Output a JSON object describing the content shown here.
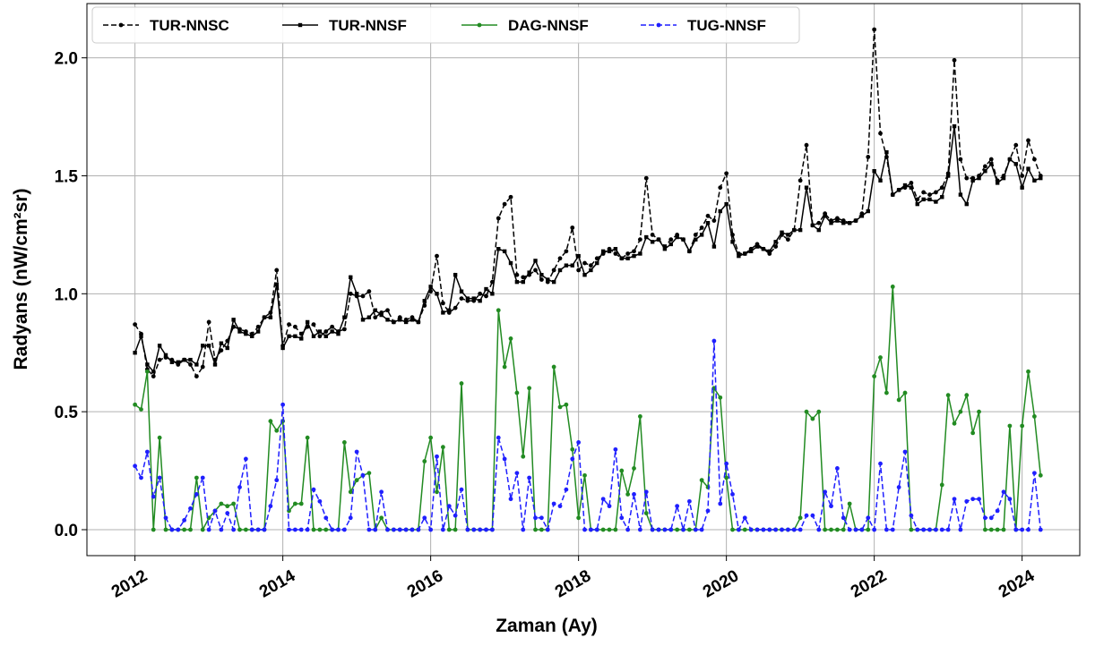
{
  "chart_data": {
    "type": "line",
    "x_label": "Zaman (Ay)",
    "y_label": "Radyans (nW/cm²sr)",
    "x": [
      "2012-01",
      "2012-02",
      "2012-03",
      "2012-04",
      "2012-05",
      "2012-06",
      "2012-07",
      "2012-08",
      "2012-09",
      "2012-10",
      "2012-11",
      "2012-12",
      "2013-01",
      "2013-02",
      "2013-03",
      "2013-04",
      "2013-05",
      "2013-06",
      "2013-07",
      "2013-08",
      "2013-09",
      "2013-10",
      "2013-11",
      "2013-12",
      "2014-01",
      "2014-02",
      "2014-03",
      "2014-04",
      "2014-05",
      "2014-06",
      "2014-07",
      "2014-08",
      "2014-09",
      "2014-10",
      "2014-11",
      "2014-12",
      "2015-01",
      "2015-02",
      "2015-03",
      "2015-04",
      "2015-05",
      "2015-06",
      "2015-07",
      "2015-08",
      "2015-09",
      "2015-10",
      "2015-11",
      "2015-12",
      "2016-01",
      "2016-02",
      "2016-03",
      "2016-04",
      "2016-05",
      "2016-06",
      "2016-07",
      "2016-08",
      "2016-09",
      "2016-10",
      "2016-11",
      "2016-12",
      "2017-01",
      "2017-02",
      "2017-03",
      "2017-04",
      "2017-05",
      "2017-06",
      "2017-07",
      "2017-08",
      "2017-09",
      "2017-10",
      "2017-11",
      "2017-12",
      "2018-01",
      "2018-02",
      "2018-03",
      "2018-04",
      "2018-05",
      "2018-06",
      "2018-07",
      "2018-08",
      "2018-09",
      "2018-10",
      "2018-11",
      "2018-12",
      "2019-01",
      "2019-02",
      "2019-03",
      "2019-04",
      "2019-05",
      "2019-06",
      "2019-07",
      "2019-08",
      "2019-09",
      "2019-10",
      "2019-11",
      "2019-12",
      "2020-01",
      "2020-02",
      "2020-03",
      "2020-04",
      "2020-05",
      "2020-06",
      "2020-07",
      "2020-08",
      "2020-09",
      "2020-10",
      "2020-11",
      "2020-12",
      "2021-01",
      "2021-02",
      "2021-03",
      "2021-04",
      "2021-05",
      "2021-06",
      "2021-07",
      "2021-08",
      "2021-09",
      "2021-10",
      "2021-11",
      "2021-12",
      "2022-01",
      "2022-02",
      "2022-03",
      "2022-04",
      "2022-05",
      "2022-06",
      "2022-07",
      "2022-08",
      "2022-09",
      "2022-10",
      "2022-11",
      "2022-12",
      "2023-01",
      "2023-02",
      "2023-03",
      "2023-04",
      "2023-05",
      "2023-06",
      "2023-07",
      "2023-08",
      "2023-09",
      "2023-10",
      "2023-11",
      "2023-12",
      "2024-01",
      "2024-02",
      "2024-03",
      "2024-04"
    ],
    "series": [
      {
        "name": "TUR-NNSC",
        "color": "#000000",
        "linestyle": "dashed",
        "marker": "circle",
        "values": [
          0.87,
          0.83,
          0.68,
          0.65,
          0.72,
          0.73,
          0.72,
          0.7,
          0.72,
          0.7,
          0.65,
          0.69,
          0.88,
          0.72,
          0.76,
          0.8,
          0.86,
          0.85,
          0.84,
          0.83,
          0.86,
          0.9,
          0.92,
          1.1,
          0.78,
          0.87,
          0.86,
          0.83,
          0.86,
          0.87,
          0.82,
          0.84,
          0.86,
          0.84,
          0.85,
          1.0,
          0.99,
          0.99,
          1.01,
          0.9,
          0.92,
          0.93,
          0.88,
          0.9,
          0.89,
          0.9,
          0.88,
          0.95,
          1.01,
          1.16,
          0.96,
          0.92,
          0.94,
          0.98,
          0.97,
          0.97,
          1.0,
          0.99,
          1.05,
          1.32,
          1.38,
          1.41,
          1.08,
          1.07,
          1.08,
          1.1,
          1.06,
          1.05,
          1.1,
          1.15,
          1.18,
          1.28,
          1.1,
          1.13,
          1.12,
          1.15,
          1.17,
          1.19,
          1.17,
          1.15,
          1.17,
          1.18,
          1.23,
          1.49,
          1.25,
          1.23,
          1.2,
          1.23,
          1.25,
          1.23,
          1.18,
          1.25,
          1.28,
          1.33,
          1.31,
          1.45,
          1.51,
          1.25,
          1.17,
          1.17,
          1.19,
          1.21,
          1.19,
          1.17,
          1.2,
          1.25,
          1.23,
          1.27,
          1.48,
          1.63,
          1.29,
          1.3,
          1.34,
          1.31,
          1.32,
          1.31,
          1.3,
          1.31,
          1.34,
          1.58,
          2.12,
          1.68,
          1.58,
          1.42,
          1.44,
          1.45,
          1.47,
          1.4,
          1.43,
          1.42,
          1.43,
          1.45,
          1.51,
          1.99,
          1.57,
          1.49,
          1.49,
          1.5,
          1.54,
          1.57,
          1.48,
          1.5,
          1.57,
          1.63,
          1.5,
          1.65,
          1.57,
          1.5
        ]
      },
      {
        "name": "TUR-NNSF",
        "color": "#000000",
        "linestyle": "solid",
        "marker": "square",
        "values": [
          0.75,
          0.82,
          0.7,
          0.67,
          0.78,
          0.74,
          0.71,
          0.71,
          0.72,
          0.72,
          0.7,
          0.78,
          0.78,
          0.7,
          0.79,
          0.77,
          0.89,
          0.84,
          0.83,
          0.82,
          0.84,
          0.9,
          0.9,
          1.04,
          0.77,
          0.82,
          0.82,
          0.81,
          0.88,
          0.82,
          0.84,
          0.82,
          0.84,
          0.83,
          0.9,
          1.07,
          1.0,
          0.89,
          0.9,
          0.93,
          0.91,
          0.89,
          0.88,
          0.89,
          0.88,
          0.89,
          0.88,
          0.97,
          1.03,
          1.0,
          0.92,
          0.93,
          1.08,
          1.01,
          0.98,
          0.98,
          0.97,
          1.02,
          1.0,
          1.19,
          1.18,
          1.13,
          1.05,
          1.05,
          1.09,
          1.14,
          1.08,
          1.06,
          1.05,
          1.1,
          1.12,
          1.12,
          1.16,
          1.08,
          1.1,
          1.13,
          1.18,
          1.18,
          1.19,
          1.15,
          1.15,
          1.16,
          1.17,
          1.24,
          1.22,
          1.23,
          1.19,
          1.21,
          1.24,
          1.23,
          1.18,
          1.23,
          1.25,
          1.3,
          1.2,
          1.35,
          1.38,
          1.22,
          1.16,
          1.17,
          1.18,
          1.2,
          1.19,
          1.18,
          1.22,
          1.26,
          1.25,
          1.27,
          1.27,
          1.45,
          1.29,
          1.27,
          1.33,
          1.3,
          1.31,
          1.3,
          1.3,
          1.31,
          1.33,
          1.35,
          1.52,
          1.48,
          1.6,
          1.42,
          1.44,
          1.46,
          1.45,
          1.38,
          1.4,
          1.4,
          1.39,
          1.41,
          1.5,
          1.71,
          1.42,
          1.38,
          1.48,
          1.49,
          1.52,
          1.55,
          1.47,
          1.49,
          1.57,
          1.55,
          1.45,
          1.53,
          1.48,
          1.49
        ]
      },
      {
        "name": "DAG-NNSF",
        "color": "#228b22",
        "linestyle": "solid",
        "marker": "circle",
        "values": [
          0.53,
          0.51,
          0.67,
          0.0,
          0.39,
          0.0,
          0.0,
          0.0,
          0.0,
          0.0,
          0.22,
          0.0,
          0.05,
          0.08,
          0.11,
          0.1,
          0.11,
          0.0,
          0.0,
          0.0,
          0.0,
          0.0,
          0.46,
          0.42,
          0.46,
          0.08,
          0.11,
          0.11,
          0.39,
          0.0,
          0.0,
          0.0,
          0.0,
          0.0,
          0.37,
          0.16,
          0.21,
          0.23,
          0.24,
          0.0,
          0.05,
          0.0,
          0.0,
          0.0,
          0.0,
          0.0,
          0.0,
          0.29,
          0.39,
          0.16,
          0.35,
          0.0,
          0.0,
          0.62,
          0.0,
          0.0,
          0.0,
          0.0,
          0.0,
          0.93,
          0.69,
          0.81,
          0.58,
          0.31,
          0.6,
          0.0,
          0.0,
          0.0,
          0.69,
          0.52,
          0.53,
          0.34,
          0.05,
          0.23,
          0.0,
          0.0,
          0.0,
          0.0,
          0.0,
          0.25,
          0.15,
          0.26,
          0.48,
          0.07,
          0.0,
          0.0,
          0.0,
          0.0,
          0.0,
          0.0,
          0.0,
          0.0,
          0.21,
          0.18,
          0.6,
          0.56,
          0.22,
          0.0,
          0.0,
          0.0,
          0.0,
          0.0,
          0.0,
          0.0,
          0.0,
          0.0,
          0.0,
          0.0,
          0.05,
          0.5,
          0.47,
          0.5,
          0.0,
          0.0,
          0.0,
          0.0,
          0.11,
          0.0,
          0.0,
          0.0,
          0.65,
          0.73,
          0.58,
          1.03,
          0.55,
          0.58,
          0.0,
          0.0,
          0.0,
          0.0,
          0.0,
          0.19,
          0.57,
          0.45,
          0.5,
          0.57,
          0.41,
          0.5,
          0.0,
          0.0,
          0.0,
          0.0,
          0.44,
          0.0,
          0.44,
          0.67,
          0.48,
          0.23
        ]
      },
      {
        "name": "TUG-NNSF",
        "color": "#1f1fff",
        "linestyle": "dashed",
        "marker": "circle",
        "values": [
          0.27,
          0.22,
          0.33,
          0.14,
          0.22,
          0.05,
          0.0,
          0.0,
          0.04,
          0.09,
          0.15,
          0.22,
          0.0,
          0.08,
          0.0,
          0.07,
          0.0,
          0.18,
          0.3,
          0.0,
          0.0,
          0.0,
          0.1,
          0.21,
          0.53,
          0.0,
          0.0,
          0.0,
          0.0,
          0.17,
          0.12,
          0.05,
          0.0,
          0.0,
          0.0,
          0.05,
          0.33,
          0.23,
          0.0,
          0.0,
          0.16,
          0.0,
          0.0,
          0.0,
          0.0,
          0.0,
          0.0,
          0.05,
          0.0,
          0.31,
          0.0,
          0.1,
          0.06,
          0.17,
          0.0,
          0.0,
          0.0,
          0.0,
          0.0,
          0.39,
          0.3,
          0.13,
          0.24,
          0.0,
          0.22,
          0.05,
          0.05,
          0.0,
          0.11,
          0.1,
          0.17,
          0.3,
          0.37,
          0.0,
          0.0,
          0.0,
          0.13,
          0.1,
          0.34,
          0.05,
          0.0,
          0.15,
          0.0,
          0.16,
          0.0,
          0.0,
          0.0,
          0.0,
          0.1,
          0.0,
          0.12,
          0.0,
          0.0,
          0.08,
          0.8,
          0.11,
          0.28,
          0.15,
          0.0,
          0.05,
          0.0,
          0.0,
          0.0,
          0.0,
          0.0,
          0.0,
          0.0,
          0.0,
          0.0,
          0.06,
          0.06,
          0.0,
          0.16,
          0.1,
          0.26,
          0.05,
          0.0,
          0.0,
          0.0,
          0.05,
          0.0,
          0.28,
          0.0,
          0.0,
          0.18,
          0.33,
          0.06,
          0.0,
          0.0,
          0.0,
          0.0,
          0.0,
          0.0,
          0.13,
          0.0,
          0.12,
          0.13,
          0.13,
          0.05,
          0.05,
          0.08,
          0.16,
          0.13,
          0.0,
          0.0,
          0.0,
          0.24,
          0.0
        ]
      }
    ],
    "xlim": [
      2011.35,
      2024.78
    ],
    "xticks": [
      2012,
      2014,
      2016,
      2018,
      2020,
      2022,
      2024
    ],
    "ylim": [
      -0.11,
      2.23
    ],
    "yticks": [
      {
        "value": 0,
        "label": "0.0"
      },
      {
        "value": 0.5,
        "label": "0.5"
      },
      {
        "value": 1,
        "label": "1.0"
      },
      {
        "value": 1.5,
        "label": "1.5"
      },
      {
        "value": 2,
        "label": "2.0"
      }
    ],
    "grid": true,
    "legend": "upper left"
  }
}
